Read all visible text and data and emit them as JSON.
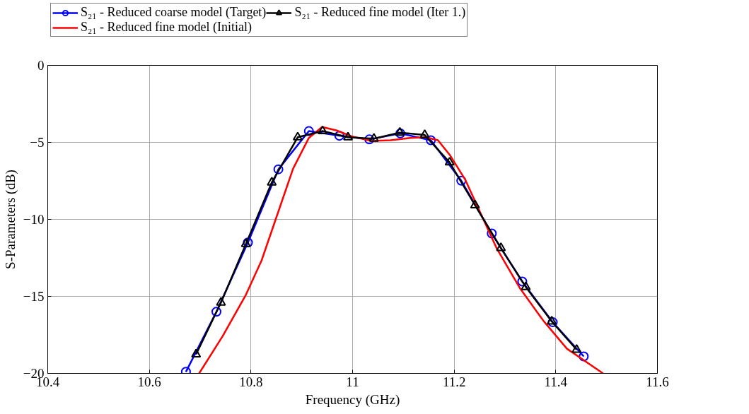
{
  "chart_data": {
    "type": "line",
    "xlabel": "Frequency (GHz)",
    "ylabel": "S-Parameters (dB)",
    "xlim": [
      10.4,
      11.6
    ],
    "ylim": [
      -20,
      0
    ],
    "xticks": [
      10.4,
      10.6,
      10.8,
      11,
      11.2,
      11.4,
      11.6
    ],
    "yticks": [
      -20,
      -15,
      -10,
      -5,
      0
    ],
    "grid": true,
    "legend": "top",
    "line_style": "solid",
    "series": [
      {
        "name": "S₂₁ - Reduced coarse model (Target)",
        "color": "#0000ff",
        "marker": "circle",
        "x": [
          10.672,
          10.732,
          10.794,
          10.854,
          10.914,
          10.974,
          11.033,
          11.094,
          11.154,
          11.214,
          11.274,
          11.334,
          11.394,
          11.455
        ],
        "values": [
          -19.9,
          -16.0,
          -11.5,
          -6.75,
          -4.27,
          -4.57,
          -4.81,
          -4.42,
          -4.86,
          -7.49,
          -10.92,
          -14.04,
          -16.68,
          -18.9
        ]
      },
      {
        "name": "S₂₁ - Reduced fine model (Initial)",
        "color": "#ff0000",
        "marker": "none",
        "x": [
          10.698,
          10.744,
          10.79,
          10.821,
          10.852,
          10.883,
          10.914,
          10.94,
          10.968,
          10.999,
          11.037,
          11.075,
          11.114,
          11.145,
          11.168,
          11.191,
          11.222,
          11.253,
          11.284,
          11.33,
          11.376,
          11.422,
          11.493
        ],
        "values": [
          -20,
          -17.6,
          -14.9,
          -12.66,
          -9.68,
          -6.7,
          -4.71,
          -4.0,
          -4.22,
          -4.62,
          -4.91,
          -4.86,
          -4.71,
          -4.67,
          -4.86,
          -5.8,
          -7.44,
          -9.68,
          -11.9,
          -14.5,
          -16.6,
          -18.4,
          -20
        ]
      },
      {
        "name": "S₂₁ - Reduced fine model (Iter 1.)",
        "color": "#000000",
        "marker": "triangle",
        "x": [
          10.692,
          10.741,
          10.79,
          10.841,
          10.892,
          10.941,
          10.991,
          11.042,
          11.093,
          11.142,
          11.191,
          11.241,
          11.292,
          11.341,
          11.392,
          11.441
        ],
        "values": [
          -18.76,
          -15.4,
          -11.6,
          -7.6,
          -4.67,
          -4.27,
          -4.67,
          -4.76,
          -4.37,
          -4.52,
          -6.3,
          -9.08,
          -11.86,
          -14.39,
          -16.63,
          -18.46
        ]
      }
    ]
  }
}
